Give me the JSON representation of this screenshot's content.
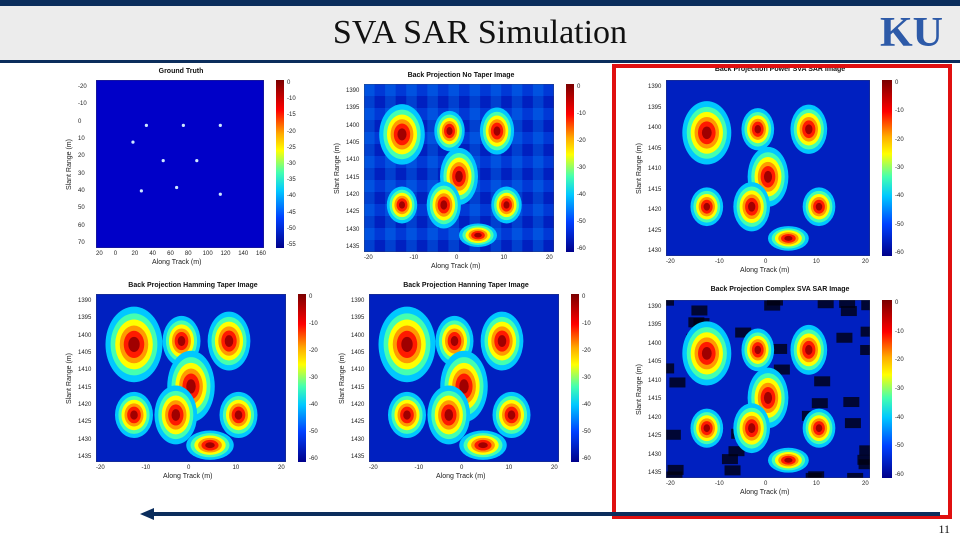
{
  "slide": {
    "title": "SVA SAR Simulation",
    "page_number": "11",
    "logo_text": "KU"
  },
  "figures": [
    {
      "title": "Ground Truth",
      "xlabel": "Along Track (m)",
      "ylabel": "Slant Range (m)",
      "xticks": [
        "20",
        "0",
        "20",
        "40",
        "60",
        "80",
        "100",
        "120",
        "140",
        "160"
      ],
      "yticks": [
        "-20",
        "-10",
        "0",
        "10",
        "20",
        "30",
        "40",
        "50",
        "60",
        "70"
      ],
      "cticks": [
        "0",
        "-10",
        "-15",
        "-20",
        "-25",
        "-30",
        "-35",
        "-40",
        "-45",
        "-50",
        "-55"
      ]
    },
    {
      "title": "Back Projection No Taper Image",
      "xlabel": "Along Track (m)",
      "ylabel": "Slant Range (m)",
      "xticks": [
        "-20",
        "-10",
        "0",
        "10",
        "20"
      ],
      "yticks": [
        "1390",
        "1395",
        "1400",
        "1405",
        "1410",
        "1415",
        "1420",
        "1425",
        "1430",
        "1435"
      ],
      "cticks": [
        "0",
        "-10",
        "-20",
        "-30",
        "-40",
        "-50",
        "-60"
      ]
    },
    {
      "title": "Back Projection Hamming Taper Image",
      "xlabel": "Along Track (m)",
      "ylabel": "Slant Range (m)",
      "xticks": [
        "-20",
        "-10",
        "0",
        "10",
        "20"
      ],
      "yticks": [
        "1390",
        "1395",
        "1400",
        "1405",
        "1410",
        "1415",
        "1420",
        "1425",
        "1430",
        "1435"
      ],
      "cticks": [
        "0",
        "-10",
        "-20",
        "-30",
        "-40",
        "-50",
        "-60"
      ]
    },
    {
      "title": "Back Projection Hanning Taper Image",
      "xlabel": "Along Track (m)",
      "ylabel": "Slant Range (m)",
      "xticks": [
        "-20",
        "-10",
        "0",
        "10",
        "20"
      ],
      "yticks": [
        "1390",
        "1395",
        "1400",
        "1405",
        "1410",
        "1415",
        "1420",
        "1425",
        "1430",
        "1435"
      ],
      "cticks": [
        "0",
        "-10",
        "-20",
        "-30",
        "-40",
        "-50",
        "-60"
      ]
    },
    {
      "title": "Back Projection Power SVA SAR Image",
      "xlabel": "Along Track (m)",
      "ylabel": "Slant Range (m)",
      "xticks": [
        "-20",
        "-10",
        "0",
        "10",
        "20"
      ],
      "yticks": [
        "1390",
        "1395",
        "1400",
        "1405",
        "1410",
        "1415",
        "1420",
        "1425",
        "1430"
      ],
      "cticks": [
        "0",
        "-10",
        "-20",
        "-30",
        "-40",
        "-50",
        "-60"
      ]
    },
    {
      "title": "Back Projection Complex SVA SAR Image",
      "xlabel": "Along Track (m)",
      "ylabel": "Slant Range (m)",
      "xticks": [
        "-20",
        "-10",
        "0",
        "10",
        "20"
      ],
      "yticks": [
        "1390",
        "1395",
        "1400",
        "1405",
        "1410",
        "1415",
        "1420",
        "1425",
        "1430",
        "1435"
      ],
      "cticks": [
        "0",
        "-10",
        "-20",
        "-30",
        "-40",
        "-50",
        "-60"
      ]
    }
  ],
  "colors": {
    "accent": "#0b2d5c",
    "highlight": "#e01010",
    "map_background": "#0000c8"
  }
}
